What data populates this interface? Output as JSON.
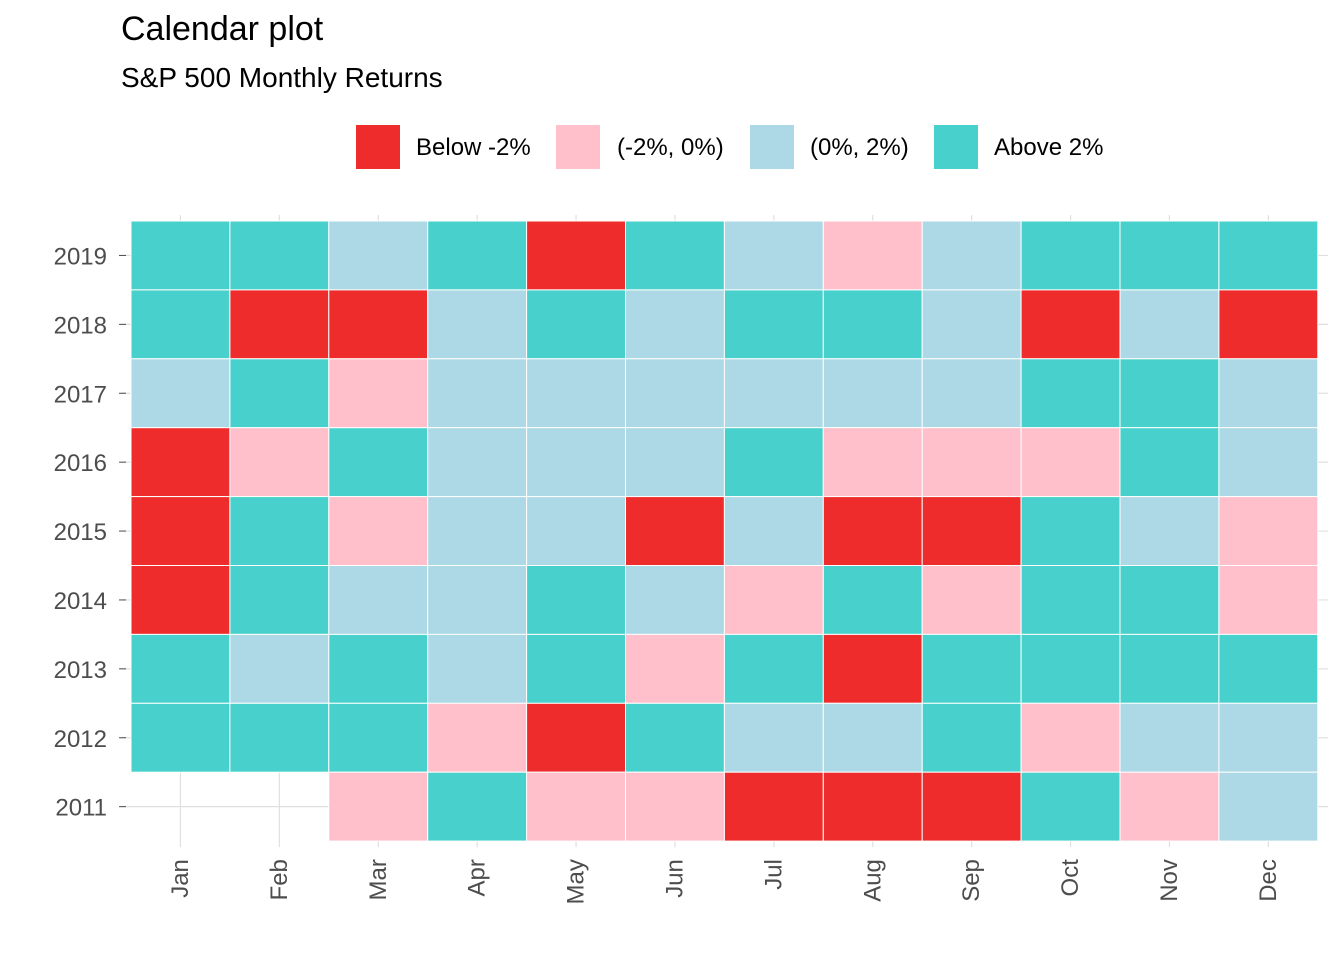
{
  "chart_data": {
    "type": "heatmap",
    "title": "Calendar plot",
    "subtitle": "S&P 500 Monthly Returns",
    "xlabel": "",
    "ylabel": "",
    "x_categories": [
      "Jan",
      "Feb",
      "Mar",
      "Apr",
      "May",
      "Jun",
      "Jul",
      "Aug",
      "Sep",
      "Oct",
      "Nov",
      "Dec"
    ],
    "y_categories": [
      "2011",
      "2012",
      "2013",
      "2014",
      "2015",
      "2016",
      "2017",
      "2018",
      "2019"
    ],
    "legend_position": "top",
    "grid": true,
    "legend": [
      {
        "label": "Below -2%",
        "color": "#EE2C2C"
      },
      {
        "label": "(-2%, 0%)",
        "color": "#FFC0CB"
      },
      {
        "label": "(0%, 2%)",
        "color": "#ADD8E6"
      },
      {
        "label": "Above 2%",
        "color": "#48D1CC"
      }
    ],
    "rows": [
      {
        "year": "2019",
        "classes": [
          3,
          3,
          2,
          3,
          0,
          3,
          2,
          1,
          2,
          3,
          3,
          3
        ]
      },
      {
        "year": "2018",
        "classes": [
          3,
          0,
          0,
          2,
          3,
          2,
          3,
          3,
          2,
          0,
          2,
          0
        ]
      },
      {
        "year": "2017",
        "classes": [
          2,
          3,
          1,
          2,
          2,
          2,
          2,
          2,
          2,
          3,
          3,
          2
        ]
      },
      {
        "year": "2016",
        "classes": [
          0,
          1,
          3,
          2,
          2,
          2,
          3,
          1,
          1,
          1,
          3,
          2
        ]
      },
      {
        "year": "2015",
        "classes": [
          0,
          3,
          1,
          2,
          2,
          0,
          2,
          0,
          0,
          3,
          2,
          1
        ]
      },
      {
        "year": "2014",
        "classes": [
          0,
          3,
          2,
          2,
          3,
          2,
          1,
          3,
          1,
          3,
          3,
          1
        ]
      },
      {
        "year": "2013",
        "classes": [
          3,
          2,
          3,
          2,
          3,
          1,
          3,
          0,
          3,
          3,
          3,
          3
        ]
      },
      {
        "year": "2012",
        "classes": [
          3,
          3,
          3,
          1,
          0,
          3,
          2,
          2,
          3,
          1,
          2,
          2
        ]
      },
      {
        "year": "2011",
        "classes": [
          null,
          null,
          1,
          3,
          1,
          1,
          0,
          0,
          0,
          3,
          1,
          2
        ]
      }
    ]
  }
}
